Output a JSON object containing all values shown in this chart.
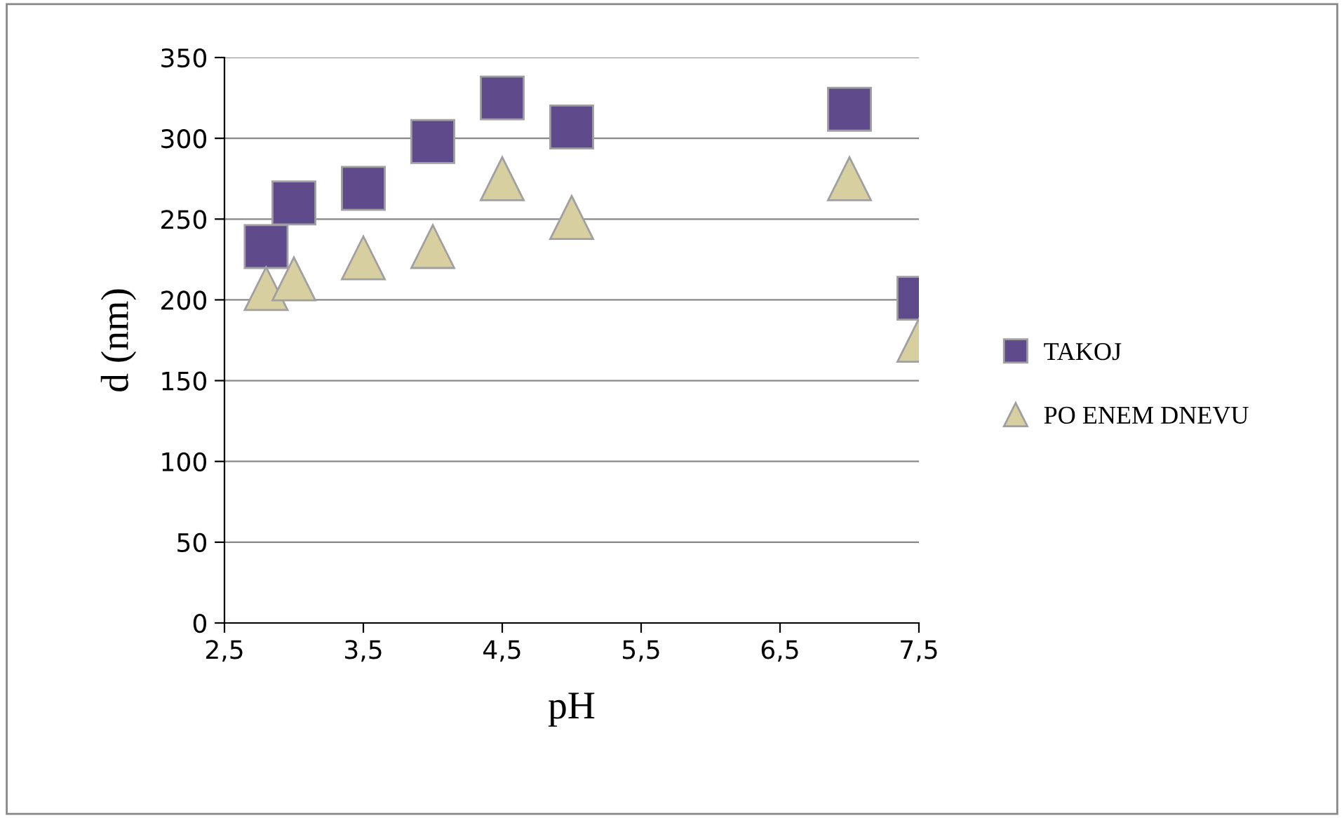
{
  "chart_data": {
    "type": "scatter",
    "xlabel": "pH",
    "ylabel": "d (nm)",
    "series": [
      {
        "name": "TAKOJ",
        "color": "#5f4a8b",
        "marker": "square",
        "x": [
          2.8,
          3.0,
          3.5,
          4.0,
          4.5,
          5.0,
          7.0,
          7.5
        ],
        "values": [
          233,
          260,
          269,
          298,
          325,
          307,
          318,
          201
        ]
      },
      {
        "name": "PO ENEM DNEVU",
        "color": "#d8cfa0",
        "marker": "triangle",
        "x": [
          2.8,
          3.0,
          3.5,
          4.0,
          4.5,
          5.0,
          7.0,
          7.5
        ],
        "values": [
          207,
          213,
          226,
          233,
          275,
          251,
          275,
          175
        ]
      }
    ],
    "xlim": [
      2.5,
      7.5
    ],
    "ylim": [
      0,
      350
    ],
    "xticks": [
      {
        "value": 2.5,
        "label": "2,5"
      },
      {
        "value": 3.5,
        "label": "3,5"
      },
      {
        "value": 4.5,
        "label": "4,5"
      },
      {
        "value": 5.5,
        "label": "5,5"
      },
      {
        "value": 6.5,
        "label": "6,5"
      },
      {
        "value": 7.5,
        "label": "7,5"
      }
    ],
    "yticks": [
      0,
      50,
      100,
      150,
      200,
      250,
      300,
      350
    ],
    "grid": "y",
    "legend": "right"
  }
}
